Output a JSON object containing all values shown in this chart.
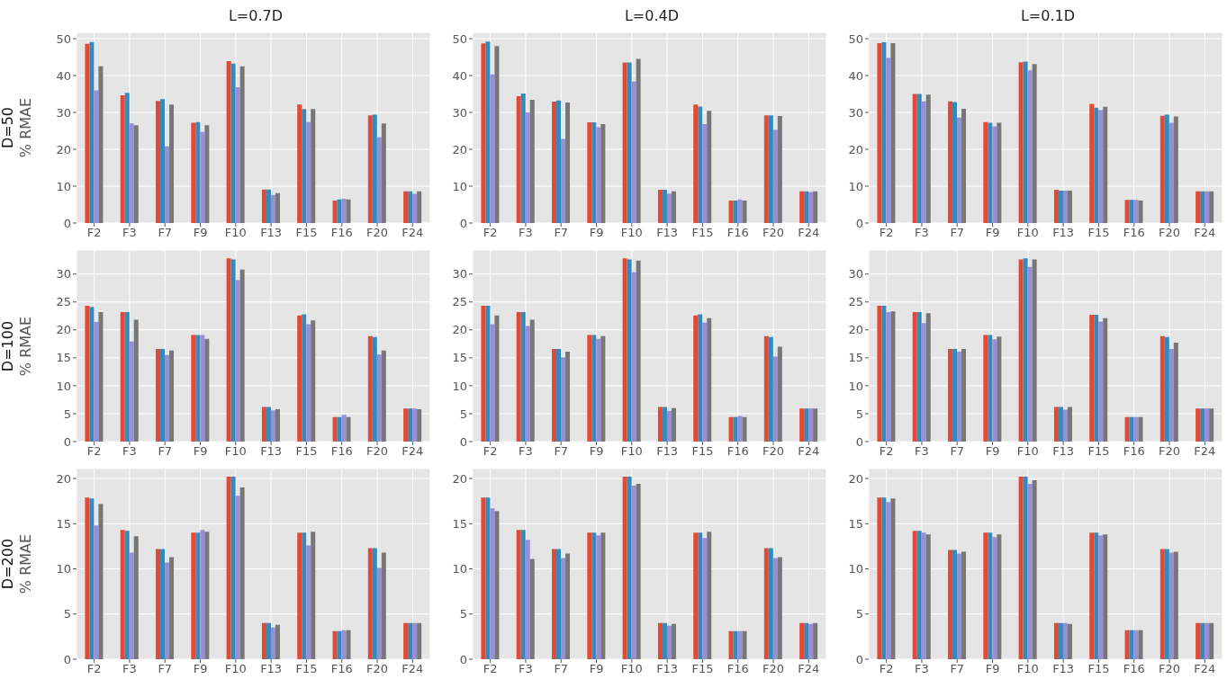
{
  "chart_data": [
    {
      "type": "bar",
      "title": "L=0.7D",
      "ylabel": "% RMAE",
      "annotations": [
        "D=50"
      ],
      "grid": true,
      "ylim": [
        0,
        51.7
      ],
      "yticks": [
        0,
        10,
        20,
        30,
        40,
        50
      ],
      "categories": [
        "F2",
        "F3",
        "F7",
        "F9",
        "F10",
        "F13",
        "F15",
        "F16",
        "F20",
        "F24"
      ],
      "series": [
        {
          "color": "#e24a33",
          "values": [
            48.6,
            34.6,
            33.1,
            27.2,
            43.9,
            9.1,
            32.1,
            6.1,
            29.2,
            8.6
          ]
        },
        {
          "color": "#348abd",
          "values": [
            49.1,
            35.3,
            33.6,
            27.4,
            43.2,
            9.1,
            30.9,
            6.4,
            29.4,
            8.6
          ]
        },
        {
          "color": "#988ed5",
          "values": [
            36,
            27,
            20.8,
            24.7,
            36.8,
            7.6,
            27.4,
            6.6,
            23.3,
            7.9
          ]
        },
        {
          "color": "#777777",
          "values": [
            42.5,
            26.5,
            32.1,
            26.5,
            42.5,
            8.1,
            30.9,
            6.4,
            27,
            8.6
          ]
        }
      ]
    },
    {
      "type": "bar",
      "title": "L=0.4D",
      "grid": true,
      "ylim": [
        0,
        51.7
      ],
      "yticks": [
        0,
        10,
        20,
        30,
        40,
        50
      ],
      "categories": [
        "F2",
        "F3",
        "F7",
        "F9",
        "F10",
        "F13",
        "F15",
        "F16",
        "F20",
        "F24"
      ],
      "series": [
        {
          "color": "#e24a33",
          "values": [
            48.7,
            34.4,
            32.9,
            27.3,
            43.5,
            9.0,
            32.1,
            6.1,
            29.2,
            8.6
          ]
        },
        {
          "color": "#348abd",
          "values": [
            49.2,
            35.1,
            33.2,
            27.3,
            43.5,
            9.0,
            31.6,
            6.1,
            29.2,
            8.6
          ]
        },
        {
          "color": "#988ed5",
          "values": [
            40.3,
            30,
            22.8,
            26,
            38.4,
            8.0,
            26.8,
            6.4,
            25.3,
            8.4
          ]
        },
        {
          "color": "#777777",
          "values": [
            48,
            33.4,
            32.7,
            26.8,
            44.5,
            8.6,
            30.4,
            6.1,
            29,
            8.6
          ]
        }
      ]
    },
    {
      "type": "bar",
      "title": "L=0.1D",
      "grid": true,
      "ylim": [
        0,
        51.7
      ],
      "yticks": [
        0,
        10,
        20,
        30,
        40,
        50
      ],
      "categories": [
        "F2",
        "F3",
        "F7",
        "F9",
        "F10",
        "F13",
        "F15",
        "F16",
        "F20",
        "F24"
      ],
      "series": [
        {
          "color": "#e24a33",
          "values": [
            48.8,
            35.0,
            33.0,
            27.4,
            43.6,
            9.0,
            32.3,
            6.3,
            29.1,
            8.6
          ]
        },
        {
          "color": "#348abd",
          "values": [
            49.0,
            35.0,
            32.8,
            27.2,
            43.8,
            8.8,
            31.3,
            6.3,
            29.4,
            8.6
          ]
        },
        {
          "color": "#988ed5",
          "values": [
            44.8,
            33.0,
            28.6,
            26.2,
            41.4,
            8.8,
            30.6,
            6.3,
            27.2,
            8.6
          ]
        },
        {
          "color": "#777777",
          "values": [
            48.8,
            34.8,
            31.0,
            27.2,
            43.1,
            8.8,
            31.5,
            6.1,
            28.9,
            8.6
          ]
        }
      ]
    },
    {
      "type": "bar",
      "ylabel": "% RMAE",
      "annotations": [
        "D=100"
      ],
      "grid": true,
      "ylim": [
        0,
        34.3
      ],
      "yticks": [
        0,
        5,
        10,
        15,
        20,
        25,
        30
      ],
      "categories": [
        "F2",
        "F3",
        "F7",
        "F9",
        "F10",
        "F13",
        "F15",
        "F16",
        "F20",
        "F24"
      ],
      "series": [
        {
          "color": "#e24a33",
          "values": [
            24.3,
            23.2,
            16.6,
            19.1,
            32.8,
            6.2,
            22.6,
            4.4,
            18.9,
            5.9
          ]
        },
        {
          "color": "#348abd",
          "values": [
            24.1,
            23.2,
            16.6,
            19.1,
            32.6,
            6.2,
            22.8,
            4.4,
            18.7,
            5.9
          ]
        },
        {
          "color": "#988ed5",
          "values": [
            21.4,
            17.9,
            15.5,
            19.1,
            28.9,
            5.6,
            21.0,
            4.8,
            15.6,
            5.9
          ]
        },
        {
          "color": "#777777",
          "values": [
            23.2,
            21.8,
            16.3,
            18.4,
            30.8,
            5.8,
            21.7,
            4.4,
            16.3,
            5.8
          ]
        }
      ]
    },
    {
      "type": "bar",
      "grid": true,
      "ylim": [
        0,
        34.3
      ],
      "yticks": [
        0,
        5,
        10,
        15,
        20,
        25,
        30
      ],
      "categories": [
        "F2",
        "F3",
        "F7",
        "F9",
        "F10",
        "F13",
        "F15",
        "F16",
        "F20",
        "F24"
      ],
      "series": [
        {
          "color": "#e24a33",
          "values": [
            24.3,
            23.2,
            16.6,
            19.1,
            32.8,
            6.2,
            22.6,
            4.4,
            18.9,
            5.9
          ]
        },
        {
          "color": "#348abd",
          "values": [
            24.3,
            23.2,
            16.6,
            19.1,
            32.6,
            6.2,
            22.8,
            4.4,
            18.7,
            5.9
          ]
        },
        {
          "color": "#988ed5",
          "values": [
            21.0,
            20.7,
            15.1,
            18.4,
            30.3,
            5.5,
            21.3,
            4.6,
            15.2,
            5.9
          ]
        },
        {
          "color": "#777777",
          "values": [
            22.6,
            21.8,
            16.1,
            18.9,
            32.4,
            6.0,
            22.1,
            4.4,
            17.0,
            5.9
          ]
        }
      ]
    },
    {
      "type": "bar",
      "grid": true,
      "ylim": [
        0,
        34.3
      ],
      "yticks": [
        0,
        5,
        10,
        15,
        20,
        25,
        30
      ],
      "categories": [
        "F2",
        "F3",
        "F7",
        "F9",
        "F10",
        "F13",
        "F15",
        "F16",
        "F20",
        "F24"
      ],
      "series": [
        {
          "color": "#e24a33",
          "values": [
            24.3,
            23.2,
            16.6,
            19.1,
            32.6,
            6.2,
            22.7,
            4.4,
            18.9,
            5.9
          ]
        },
        {
          "color": "#348abd",
          "values": [
            24.3,
            23.2,
            16.6,
            19.1,
            32.8,
            6.2,
            22.7,
            4.4,
            18.7,
            5.9
          ]
        },
        {
          "color": "#988ed5",
          "values": [
            23.2,
            21.2,
            16.1,
            18.3,
            31.3,
            5.7,
            21.5,
            4.4,
            16.6,
            5.9
          ]
        },
        {
          "color": "#777777",
          "values": [
            23.3,
            23.0,
            16.6,
            18.8,
            32.6,
            6.2,
            22.1,
            4.4,
            17.7,
            5.9
          ]
        }
      ]
    },
    {
      "type": "bar",
      "ylabel": "% RMAE",
      "annotations": [
        "D=200"
      ],
      "grid": true,
      "ylim": [
        0,
        21.1
      ],
      "yticks": [
        0,
        5,
        10,
        15,
        20
      ],
      "categories": [
        "F2",
        "F3",
        "F7",
        "F9",
        "F10",
        "F13",
        "F15",
        "F16",
        "F20",
        "F24"
      ],
      "series": [
        {
          "color": "#e24a33",
          "values": [
            17.9,
            14.3,
            12.2,
            14.0,
            20.2,
            4.0,
            14.0,
            3.1,
            12.3,
            4.0
          ]
        },
        {
          "color": "#348abd",
          "values": [
            17.8,
            14.2,
            12.2,
            14.0,
            20.2,
            4.0,
            14.0,
            3.1,
            12.3,
            4.0
          ]
        },
        {
          "color": "#988ed5",
          "values": [
            14.8,
            11.8,
            10.7,
            14.3,
            18.1,
            3.5,
            12.6,
            3.2,
            10.1,
            4.0
          ]
        },
        {
          "color": "#777777",
          "values": [
            17.2,
            13.6,
            11.3,
            14.1,
            19.0,
            3.8,
            14.1,
            3.2,
            11.8,
            4.0
          ]
        }
      ]
    },
    {
      "type": "bar",
      "grid": true,
      "ylim": [
        0,
        21.1
      ],
      "yticks": [
        0,
        5,
        10,
        15,
        20
      ],
      "categories": [
        "F2",
        "F3",
        "F7",
        "F9",
        "F10",
        "F13",
        "F15",
        "F16",
        "F20",
        "F24"
      ],
      "series": [
        {
          "color": "#e24a33",
          "values": [
            17.9,
            14.3,
            12.2,
            14.0,
            20.2,
            4.0,
            14.0,
            3.1,
            12.3,
            4.0
          ]
        },
        {
          "color": "#348abd",
          "values": [
            17.9,
            14.3,
            12.2,
            14.0,
            20.2,
            4.0,
            14.0,
            3.1,
            12.3,
            4.0
          ]
        },
        {
          "color": "#988ed5",
          "values": [
            16.7,
            13.2,
            11.2,
            13.7,
            19.2,
            3.7,
            13.4,
            3.1,
            11.2,
            3.9
          ]
        },
        {
          "color": "#777777",
          "values": [
            16.4,
            11.1,
            11.7,
            14.0,
            19.4,
            3.9,
            14.1,
            3.1,
            11.3,
            4.0
          ]
        }
      ]
    },
    {
      "type": "bar",
      "grid": true,
      "ylim": [
        0,
        21.1
      ],
      "yticks": [
        0,
        5,
        10,
        15,
        20
      ],
      "categories": [
        "F2",
        "F3",
        "F7",
        "F9",
        "F10",
        "F13",
        "F15",
        "F16",
        "F20",
        "F24"
      ],
      "series": [
        {
          "color": "#e24a33",
          "values": [
            17.9,
            14.2,
            12.1,
            14.0,
            20.2,
            4.0,
            14.0,
            3.2,
            12.2,
            4.0
          ]
        },
        {
          "color": "#348abd",
          "values": [
            17.9,
            14.2,
            12.1,
            14.0,
            20.2,
            4.0,
            14.0,
            3.2,
            12.2,
            4.0
          ]
        },
        {
          "color": "#988ed5",
          "values": [
            17.4,
            14.0,
            11.7,
            13.5,
            19.4,
            4.0,
            13.7,
            3.2,
            11.8,
            4.0
          ]
        },
        {
          "color": "#777777",
          "values": [
            17.8,
            13.8,
            11.9,
            13.8,
            19.8,
            3.9,
            13.8,
            3.2,
            11.9,
            4.0
          ]
        }
      ]
    }
  ]
}
